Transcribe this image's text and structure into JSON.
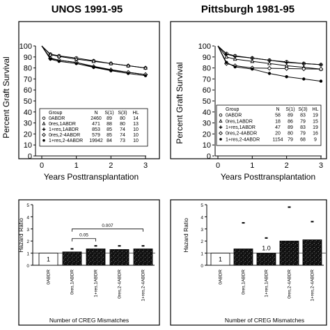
{
  "chart_data": [
    {
      "type": "line",
      "title": "UNOS 1991-95",
      "xlabel": "Years Posttransplantation",
      "ylabel": "Percent Graft Survival",
      "xlim": [
        0,
        3
      ],
      "ylim": [
        0,
        100
      ],
      "xticks": [
        "0",
        "1",
        "2",
        "3"
      ],
      "yticks": [
        "0",
        "10",
        "20",
        "30",
        "40",
        "50",
        "60",
        "70",
        "80",
        "90",
        "100"
      ],
      "table_headers": [
        "Group",
        "N",
        "S(1)",
        "S(3)",
        "HL"
      ],
      "series": [
        {
          "name": "0ABDR",
          "marker": "open-circle",
          "N": "2460",
          "S1": "89",
          "S3": "80",
          "HL": "14",
          "x": [
            0,
            0.25,
            0.5,
            1,
            1.5,
            2,
            2.5,
            3
          ],
          "y": [
            100,
            92.5,
            91,
            89,
            86.5,
            84,
            82,
            80
          ]
        },
        {
          "name": "0res,1ABDR",
          "marker": "open-triangle",
          "N": "471",
          "S1": "88",
          "S3": "80",
          "HL": "13",
          "x": [
            0,
            0.25,
            0.5,
            1,
            1.5,
            2,
            2.5,
            3
          ],
          "y": [
            100,
            92,
            90.5,
            88,
            86,
            84,
            82,
            80
          ]
        },
        {
          "name": "1+res,1ABDR",
          "marker": "plus",
          "N": "853",
          "S1": "85",
          "S3": "74",
          "HL": "10",
          "x": [
            0,
            0.25,
            0.5,
            1,
            1.5,
            2,
            2.5,
            3
          ],
          "y": [
            100,
            89,
            87,
            85,
            81.5,
            78.5,
            76,
            74
          ]
        },
        {
          "name": "0res,2-4ABDR",
          "marker": "open-diamond",
          "N": "579",
          "S1": "85",
          "S3": "74",
          "HL": "10",
          "x": [
            0,
            0.25,
            0.5,
            1,
            1.5,
            2,
            2.5,
            3
          ],
          "y": [
            100,
            88.5,
            87,
            85,
            81,
            78,
            76,
            74
          ]
        },
        {
          "name": "1+res,2-4ABDR",
          "marker": "filled-circle",
          "N": "19942",
          "S1": "84",
          "S3": "73",
          "HL": "10",
          "x": [
            0,
            0.25,
            0.5,
            1,
            1.5,
            2,
            2.5,
            3
          ],
          "y": [
            100,
            88,
            86,
            84,
            80.5,
            77.5,
            75,
            73
          ]
        }
      ]
    },
    {
      "type": "line",
      "title": "Pittsburgh 1981-95",
      "xlabel": "Years Posttransplantation",
      "ylabel": "Percent Graft Survival",
      "xlim": [
        0,
        3
      ],
      "ylim": [
        0,
        100
      ],
      "xticks": [
        "0",
        "1",
        "2",
        "3"
      ],
      "yticks": [
        "0",
        "10",
        "20",
        "30",
        "40",
        "50",
        "60",
        "70",
        "80",
        "90",
        "100"
      ],
      "table_headers": [
        "Group",
        "N",
        "S(1)",
        "S(3)",
        "HL"
      ],
      "series": [
        {
          "name": "0ABDR",
          "marker": "open-circle",
          "N": "58",
          "S1": "89",
          "S3": "83",
          "HL": "19",
          "x": [
            0,
            0.25,
            0.5,
            1,
            1.5,
            2,
            2.5,
            3
          ],
          "y": [
            100,
            93,
            91,
            89,
            87,
            85.5,
            84,
            83
          ]
        },
        {
          "name": "0res,1ABDR",
          "marker": "open-triangle",
          "N": "18",
          "S1": "86",
          "S3": "79",
          "HL": "15",
          "x": [
            0,
            0.25,
            0.5,
            1,
            1.5,
            2,
            2.5,
            3
          ],
          "y": [
            100,
            90,
            88,
            86,
            84,
            82,
            80.5,
            79
          ]
        },
        {
          "name": "1+res,1ABDR",
          "marker": "plus",
          "N": "47",
          "S1": "89",
          "S3": "83",
          "HL": "19",
          "x": [
            0,
            0.25,
            0.5,
            1,
            1.5,
            2,
            2.5,
            3
          ],
          "y": [
            100,
            92.5,
            90.5,
            89,
            87,
            85,
            84,
            83
          ]
        },
        {
          "name": "0res,2-4ABDR",
          "marker": "open-diamond",
          "N": "20",
          "S1": "80",
          "S3": "79",
          "HL": "16",
          "x": [
            0,
            0.25,
            0.5,
            1,
            1.5,
            2,
            2.5,
            3
          ],
          "y": [
            100,
            84,
            82,
            80,
            79.7,
            79.4,
            79.2,
            79
          ]
        },
        {
          "name": "1+res,2-4ABDR",
          "marker": "filled-circle",
          "N": "1154",
          "S1": "79",
          "S3": "68",
          "HL": "9",
          "x": [
            0,
            0.25,
            0.5,
            1,
            1.5,
            2,
            2.5,
            3
          ],
          "y": [
            100,
            85,
            81,
            79,
            75,
            72,
            70,
            68
          ]
        }
      ]
    },
    {
      "type": "bar",
      "xlabel": "Number of CREG Mismatches",
      "ylabel": "Hazard Ratio",
      "ylim": [
        0,
        5
      ],
      "yticks": [
        "0",
        "1",
        "2",
        "3",
        "4",
        "5"
      ],
      "categories": [
        "0ABDR",
        "0res,1ABDR",
        "1+res,1ABDR",
        "0res,2-4ABDR",
        "1+res,2-4ABDR"
      ],
      "values": [
        1,
        1.1,
        1.35,
        1.3,
        1.35
      ],
      "upper_marks": [
        null,
        1.35,
        1.6,
        1.6,
        1.6
      ],
      "bar_labels": [
        "1",
        "",
        "",
        "",
        ""
      ],
      "comparisons": [
        {
          "label": "0.05",
          "from": 1,
          "to": 2,
          "y": 2.2
        },
        {
          "label": "0.007",
          "from": 1,
          "to": 4,
          "y": 3.0
        }
      ]
    },
    {
      "type": "bar",
      "xlabel": "Number of CREG Mismatches",
      "ylabel": "Hazard Ratio",
      "ylim": [
        0,
        5
      ],
      "yticks": [
        "0",
        "1",
        "2",
        "3",
        "4",
        "5"
      ],
      "categories": [
        "0ABDR",
        "0res,1ABDR",
        "1+res,1ABDR",
        "0res,2-4ABDR",
        "1+res,2-4ABDR"
      ],
      "values": [
        1,
        1.35,
        1.0,
        2.0,
        2.1
      ],
      "upper_marks": [
        null,
        3.5,
        2.25,
        4.8,
        3.6
      ],
      "bar_labels": [
        "1",
        "",
        "1.0",
        "",
        ""
      ]
    }
  ]
}
